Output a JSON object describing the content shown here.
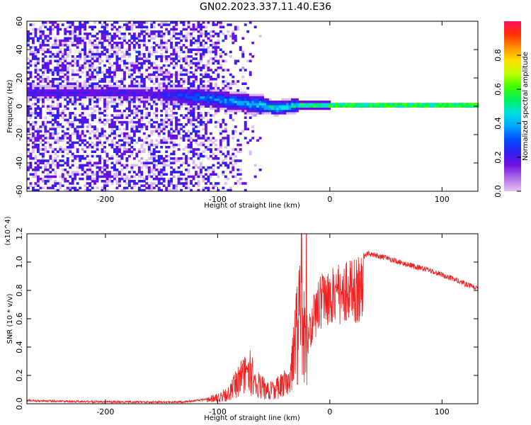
{
  "title": "GN02.2023.337.11.40.E36",
  "colors": {
    "snr_line": "#ee2020",
    "background": "#ffffff",
    "colormap": [
      "#e8c0f0",
      "#b070e8",
      "#7010e0",
      "#3020f0",
      "#0050ff",
      "#00a8ff",
      "#00e0e0",
      "#00f060",
      "#40ff00",
      "#c0ff00",
      "#ffe000",
      "#ff9000",
      "#ff3000",
      "#ff1060"
    ]
  },
  "chart_data": [
    {
      "type": "heatmap",
      "name": "spectrogram",
      "xlabel": "Height of straight line (km)",
      "ylabel": "Frequency (Hz)",
      "xlim": [
        -270,
        132
      ],
      "ylim": [
        -60,
        60
      ],
      "xticks": [
        {
          "v": -200,
          "t": "-200"
        },
        {
          "v": -100,
          "t": "-100"
        },
        {
          "v": 0,
          "t": "0"
        },
        {
          "v": 100,
          "t": "100"
        }
      ],
      "yticks": [
        {
          "v": -60,
          "t": "-60"
        },
        {
          "v": -40,
          "t": "-40"
        },
        {
          "v": -20,
          "t": "-20"
        },
        {
          "v": 0,
          "t": "0"
        },
        {
          "v": 20,
          "t": "20"
        },
        {
          "v": 40,
          "t": "40"
        },
        {
          "v": 60,
          "t": "60"
        }
      ],
      "ridge": [
        [
          -200,
          9
        ],
        [
          -160,
          8
        ],
        [
          -140,
          7
        ],
        [
          -120,
          6
        ],
        [
          -100,
          4
        ],
        [
          -80,
          2
        ],
        [
          -60,
          0
        ],
        [
          -50,
          -2
        ],
        [
          -40,
          -1
        ],
        [
          -30,
          0
        ],
        [
          -20,
          0
        ],
        [
          0,
          0
        ],
        [
          132,
          0
        ]
      ],
      "colorbar": {
        "label": "Normalized spectral amplitude",
        "range": [
          0,
          1
        ],
        "ticks": [
          {
            "v": 0.0,
            "t": "0.0"
          },
          {
            "v": 0.2,
            "t": "0.2"
          },
          {
            "v": 0.4,
            "t": "0.4"
          },
          {
            "v": 0.6,
            "t": "0.6"
          },
          {
            "v": 0.8,
            "t": "0.8"
          }
        ]
      }
    },
    {
      "type": "line",
      "name": "snr",
      "xlabel": "Height of straight line (km)",
      "ylabel": "SNR (10 * v/v)",
      "scale_label": "(x10^4)",
      "xlim": [
        -270,
        132
      ],
      "ylim": [
        0,
        1.2
      ],
      "xticks": [
        {
          "v": -200,
          "t": "-200"
        },
        {
          "v": -100,
          "t": "-100"
        },
        {
          "v": 0,
          "t": "0"
        },
        {
          "v": 100,
          "t": "100"
        }
      ],
      "yticks": [
        {
          "v": 0.0,
          "t": "0.0"
        },
        {
          "v": 0.2,
          "t": "0.2"
        },
        {
          "v": 0.4,
          "t": "0.4"
        },
        {
          "v": 0.6,
          "t": "0.6"
        },
        {
          "v": 0.8,
          "t": "0.8"
        },
        {
          "v": 1.0,
          "t": "1.0"
        },
        {
          "v": 1.2,
          "t": "1.2"
        }
      ],
      "envelope": [
        [
          -270,
          0.03
        ],
        [
          -200,
          0.02
        ],
        [
          -130,
          0.02
        ],
        [
          -110,
          0.04
        ],
        [
          -90,
          0.12
        ],
        [
          -80,
          0.3
        ],
        [
          -72,
          0.4
        ],
        [
          -65,
          0.25
        ],
        [
          -55,
          0.15
        ],
        [
          -45,
          0.2
        ],
        [
          -35,
          0.3
        ],
        [
          -30,
          0.8
        ],
        [
          -25,
          1.1
        ],
        [
          -20,
          0.6
        ],
        [
          -15,
          0.8
        ],
        [
          -10,
          0.9
        ],
        [
          -5,
          1.0
        ],
        [
          0,
          0.95
        ],
        [
          10,
          1.0
        ],
        [
          20,
          1.02
        ],
        [
          35,
          1.08
        ],
        [
          50,
          1.05
        ],
        [
          70,
          1.0
        ],
        [
          90,
          0.96
        ],
        [
          110,
          0.9
        ],
        [
          132,
          0.83
        ]
      ]
    }
  ]
}
